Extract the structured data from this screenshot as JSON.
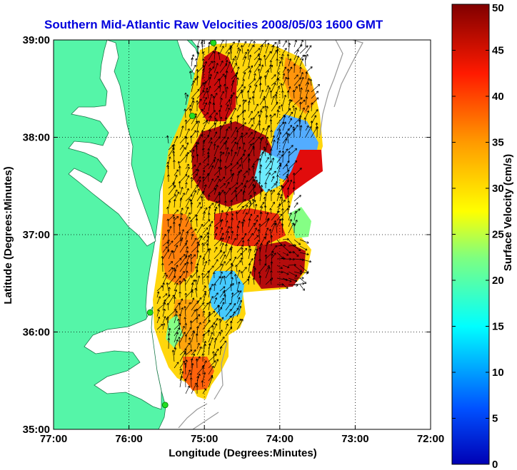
{
  "title": "Southern Mid-Atlantic Raw Velocities 2008/05/03 1600 GMT",
  "map": {
    "xlabel": "Longitude (Degrees:Minutes)",
    "ylabel": "Latitude (Degrees:Minutes)",
    "x_ticks": [
      "77:00",
      "76:00",
      "75:00",
      "74:00",
      "73:00",
      "72:00"
    ],
    "y_ticks": [
      "39:00",
      "38:00",
      "37:00",
      "36:00",
      "35:00"
    ],
    "x_range_deg_west": [
      77,
      72
    ],
    "y_range_deg_north": [
      35,
      39
    ],
    "grid": "dotted",
    "land_color": "#55f5a8",
    "water_color": "#ffffff",
    "station_color": "#22dd22",
    "stations": [
      {
        "lon": -74.88,
        "lat": 38.97
      },
      {
        "lon": -75.16,
        "lat": 38.22
      },
      {
        "lon": -75.72,
        "lat": 36.2
      },
      {
        "lon": -75.52,
        "lat": 35.25
      }
    ]
  },
  "colorbar": {
    "label": "Surface Velocity (cm/s)",
    "min": 0,
    "max": 50,
    "ticks": [
      "0",
      "5",
      "10",
      "15",
      "20",
      "25",
      "30",
      "35",
      "40",
      "45",
      "50"
    ],
    "colormap": "jet"
  }
}
